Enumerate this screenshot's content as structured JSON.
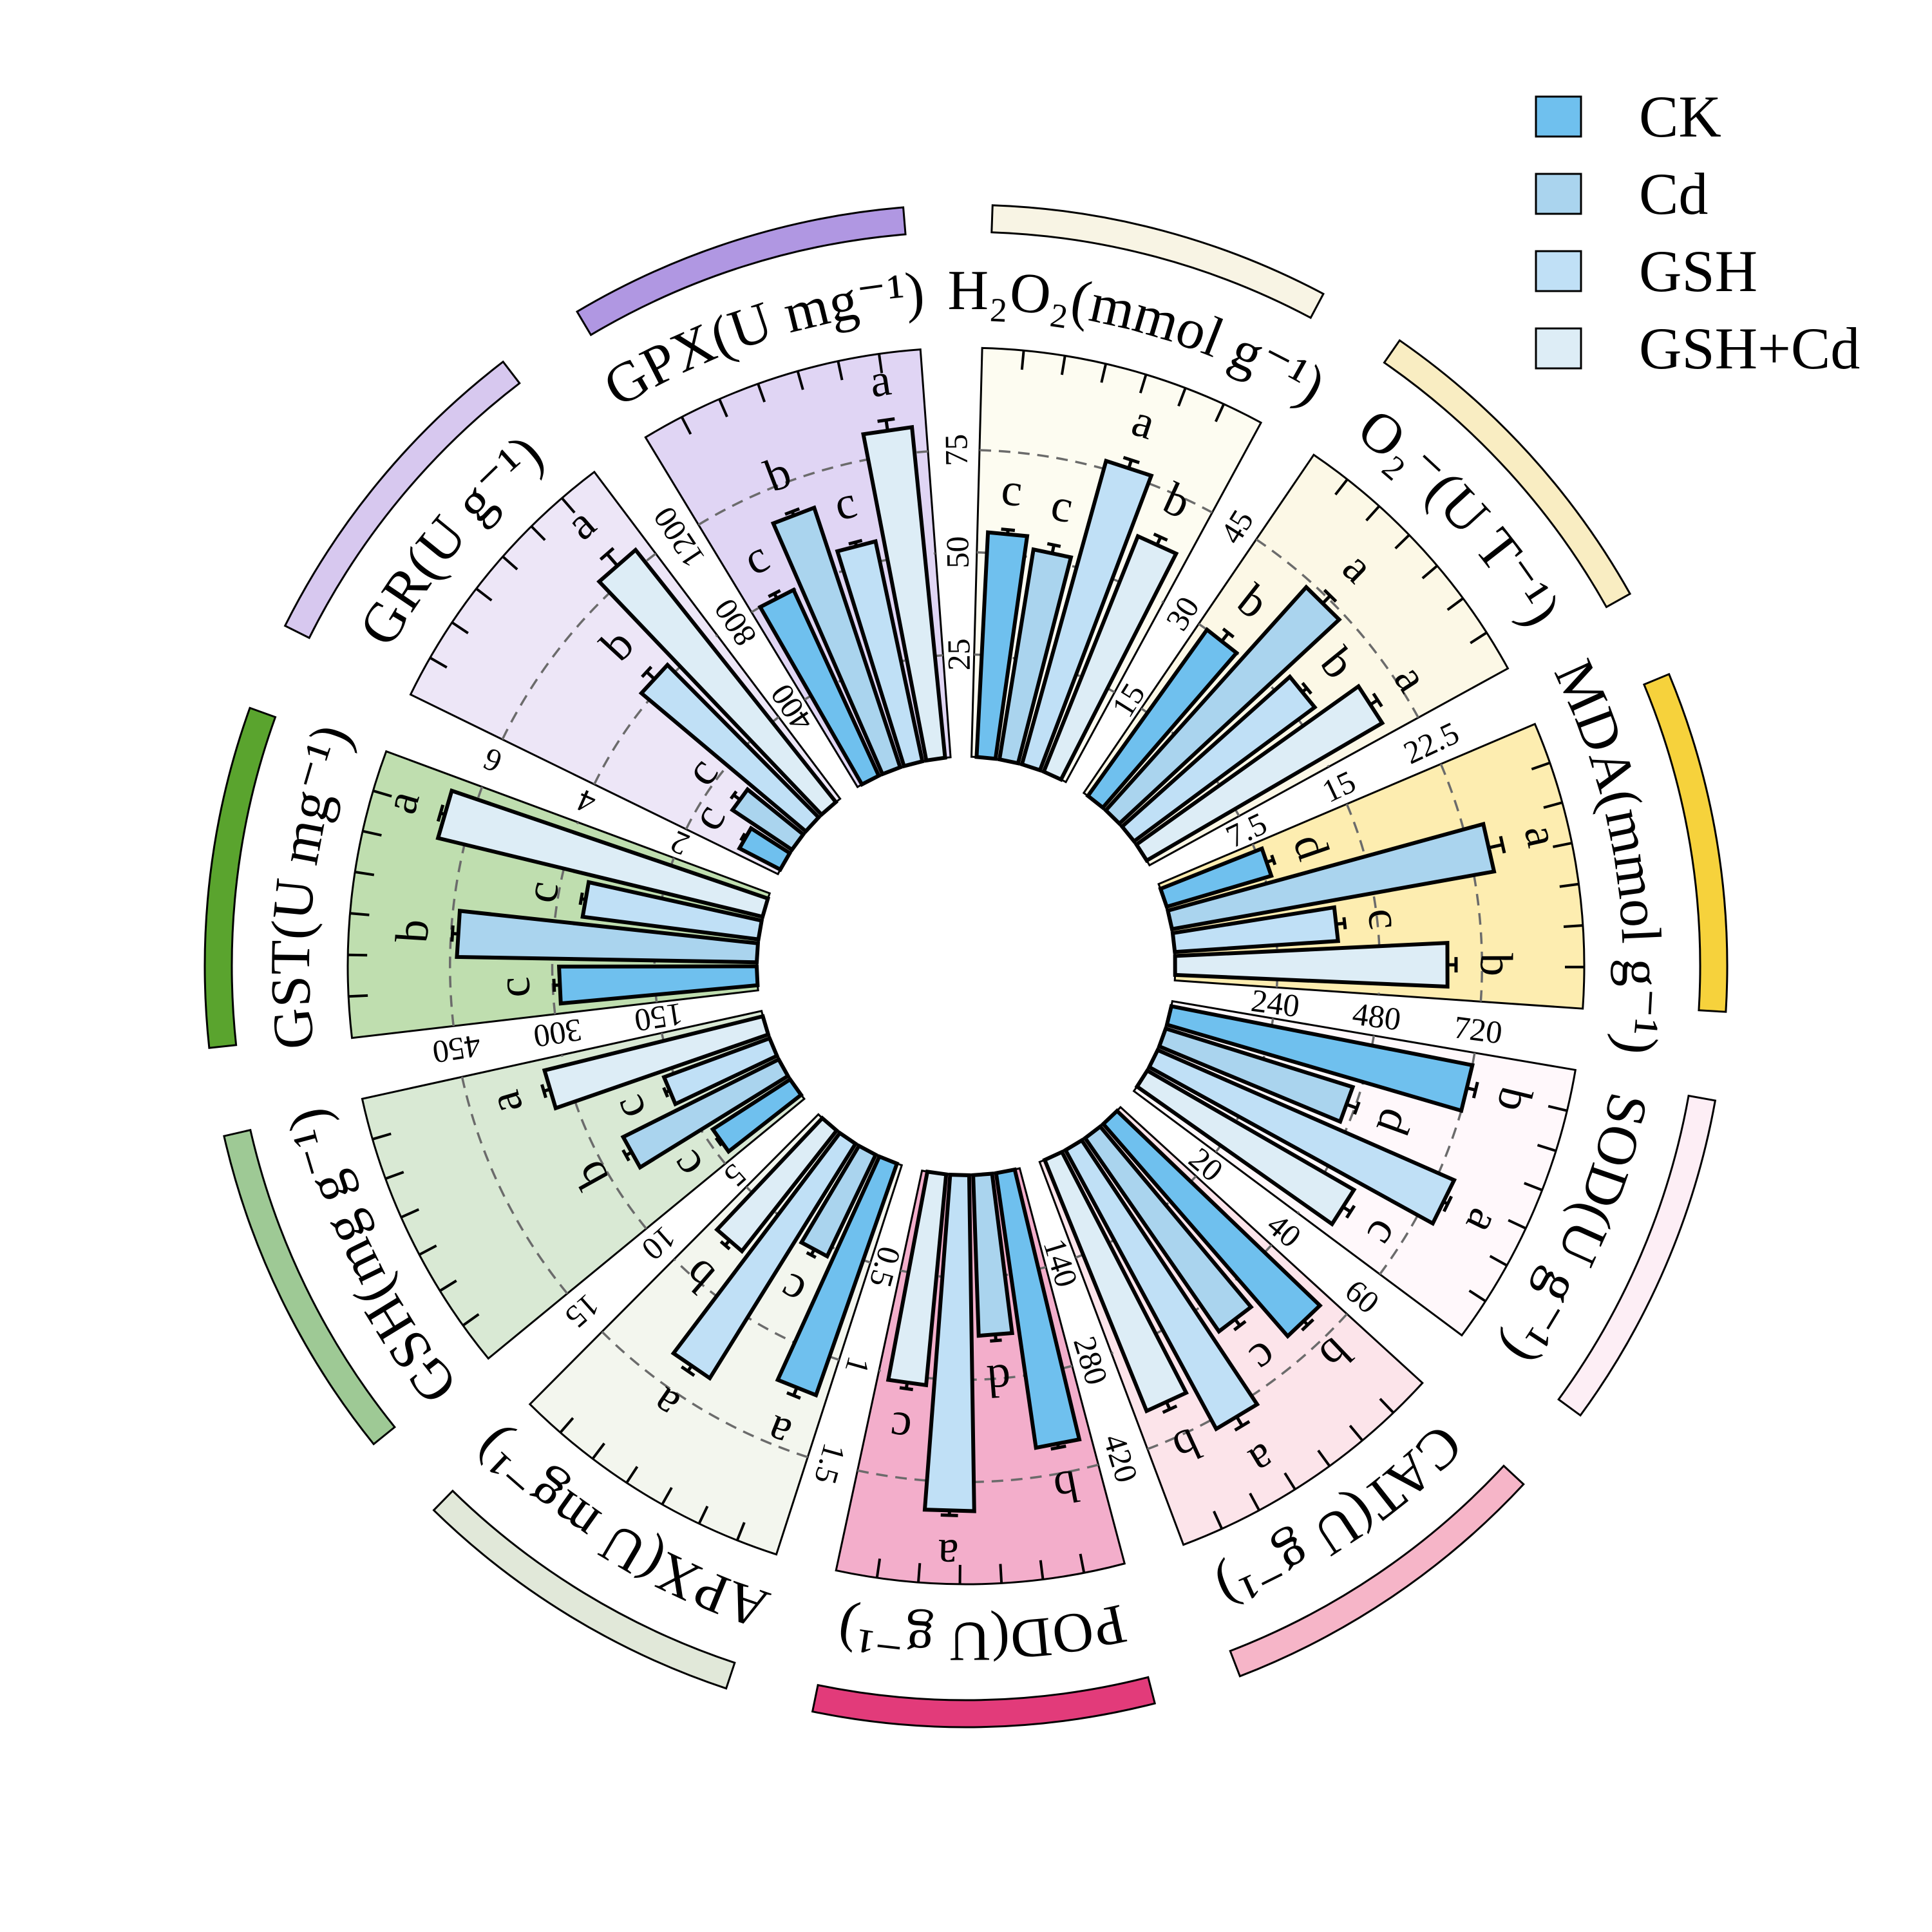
{
  "chart_data": {
    "type": "bar",
    "layout": "circular",
    "legend_position": "top-right",
    "groups": [
      "CK",
      "Cd",
      "GSH",
      "GSH+Cd"
    ],
    "group_colors": [
      "#6fc0ee",
      "#aad4ee",
      "#c0e0f6",
      "#ddedf6"
    ],
    "grid": "dashed arcs at labeled ticks",
    "sectors": [
      {
        "title": "H₂O₂(mmol g⁻¹)",
        "max": 100,
        "ticks": [
          25,
          50,
          75
        ],
        "values": [
          55,
          52,
          77,
          62
        ],
        "errors": [
          1,
          2,
          2,
          2
        ],
        "letters": [
          "c",
          "c",
          "a",
          "b"
        ],
        "bg": "#fdfcf1",
        "band": "#f8f4e4"
      },
      {
        "title": "O₂⁻(U T⁻¹)",
        "max": 60,
        "ticks": [
          15,
          30,
          45
        ],
        "values": [
          30,
          44,
          33,
          40
        ],
        "errors": [
          1.5,
          1.5,
          0.8,
          1.2
        ],
        "letters": [
          "b",
          "a",
          "b",
          "a"
        ],
        "bg": "#fcf8e6",
        "band": "#f9edc2"
      },
      {
        "title": "MDA(mmol g⁻¹)",
        "max": 30,
        "ticks": [
          7.5,
          15,
          22.5
        ],
        "values": [
          8,
          24,
          12,
          20
        ],
        "errors": [
          0.5,
          1,
          0.6,
          0.6
        ],
        "letters": [
          "d",
          "a",
          "c",
          "b"
        ],
        "bg": "#fdedb0",
        "band": "#f6d23c"
      },
      {
        "title": "SOD(U g⁻¹)",
        "max": 960,
        "ticks": [
          240,
          480,
          720
        ],
        "values": [
          720,
          460,
          760,
          560
        ],
        "errors": [
          20,
          25,
          10,
          20
        ],
        "letters": [
          "b",
          "d",
          "a",
          "c"
        ],
        "bg": "#fff8fb",
        "band": "#fdeef5"
      },
      {
        "title": "CAT(U g⁻¹)",
        "max": 80,
        "ticks": [
          20,
          40,
          60
        ],
        "values": [
          55,
          46,
          62,
          53
        ],
        "errors": [
          1,
          1.5,
          2,
          1.5
        ],
        "letters": [
          "b",
          "c",
          "a",
          "b"
        ],
        "bg": "#fce4ea",
        "band": "#f6b5c8"
      },
      {
        "title": "POD(U g⁻¹)",
        "max": 560,
        "ticks": [
          140,
          280,
          420
        ],
        "values": [
          380,
          220,
          460,
          290
        ],
        "errors": [
          5,
          8,
          6,
          8
        ],
        "letters": [
          "b",
          "d",
          "a",
          "c"
        ],
        "bg": "#f3aecb",
        "band": "#e23b7a"
      },
      {
        "title": "APX(U mg⁻¹)",
        "max": 2,
        "ticks": [
          0.5,
          1,
          1.5
        ],
        "values": [
          1.2,
          0.55,
          1.35,
          0.75
        ],
        "errors": [
          0.04,
          0.03,
          0.03,
          0.03
        ],
        "letters": [
          "a",
          "c",
          "a",
          "b"
        ],
        "bg": "#f3f6ee",
        "band": "#e1e8d9"
      },
      {
        "title": "GSH(mg g⁻¹)",
        "max": 20,
        "ticks": [
          5,
          10,
          15
        ],
        "values": [
          4.5,
          8.5,
          5.5,
          11
        ],
        "errors": [
          0.1,
          0.3,
          0.2,
          0.3
        ],
        "letters": [
          "c",
          "b",
          "c",
          "a"
        ],
        "bg": "#d9e9d4",
        "band": "#9ec995"
      },
      {
        "title": "GST(U mg⁻¹)",
        "max": 600,
        "ticks": [
          150,
          300,
          450
        ],
        "values": [
          290,
          440,
          260,
          490
        ],
        "errors": [
          8,
          8,
          6,
          6
        ],
        "letters": [
          "c",
          "b",
          "c",
          "a"
        ],
        "bg": "#bfdeaf",
        "band": "#5aa42e"
      },
      {
        "title": "GR(U g⁻¹)",
        "max": 8,
        "ticks": [
          2,
          4,
          6
        ],
        "values": [
          0.9,
          1.4,
          4.2,
          6.3
        ],
        "errors": [
          0.05,
          0.15,
          0.2,
          0.3
        ],
        "letters": [
          "c",
          "c",
          "b",
          "a"
        ],
        "bg": "#ede6f7",
        "band": "#d7c8ef"
      },
      {
        "title": "GPX(U mg⁻¹)",
        "max": 1600,
        "ticks": [
          400,
          800,
          1200
        ],
        "values": [
          800,
          1070,
          880,
          1300
        ],
        "errors": [
          20,
          15,
          15,
          40
        ],
        "letters": [
          "c",
          "b",
          "c",
          "a"
        ],
        "bg": "#e0d5f4",
        "band": "#b097e2"
      }
    ]
  }
}
